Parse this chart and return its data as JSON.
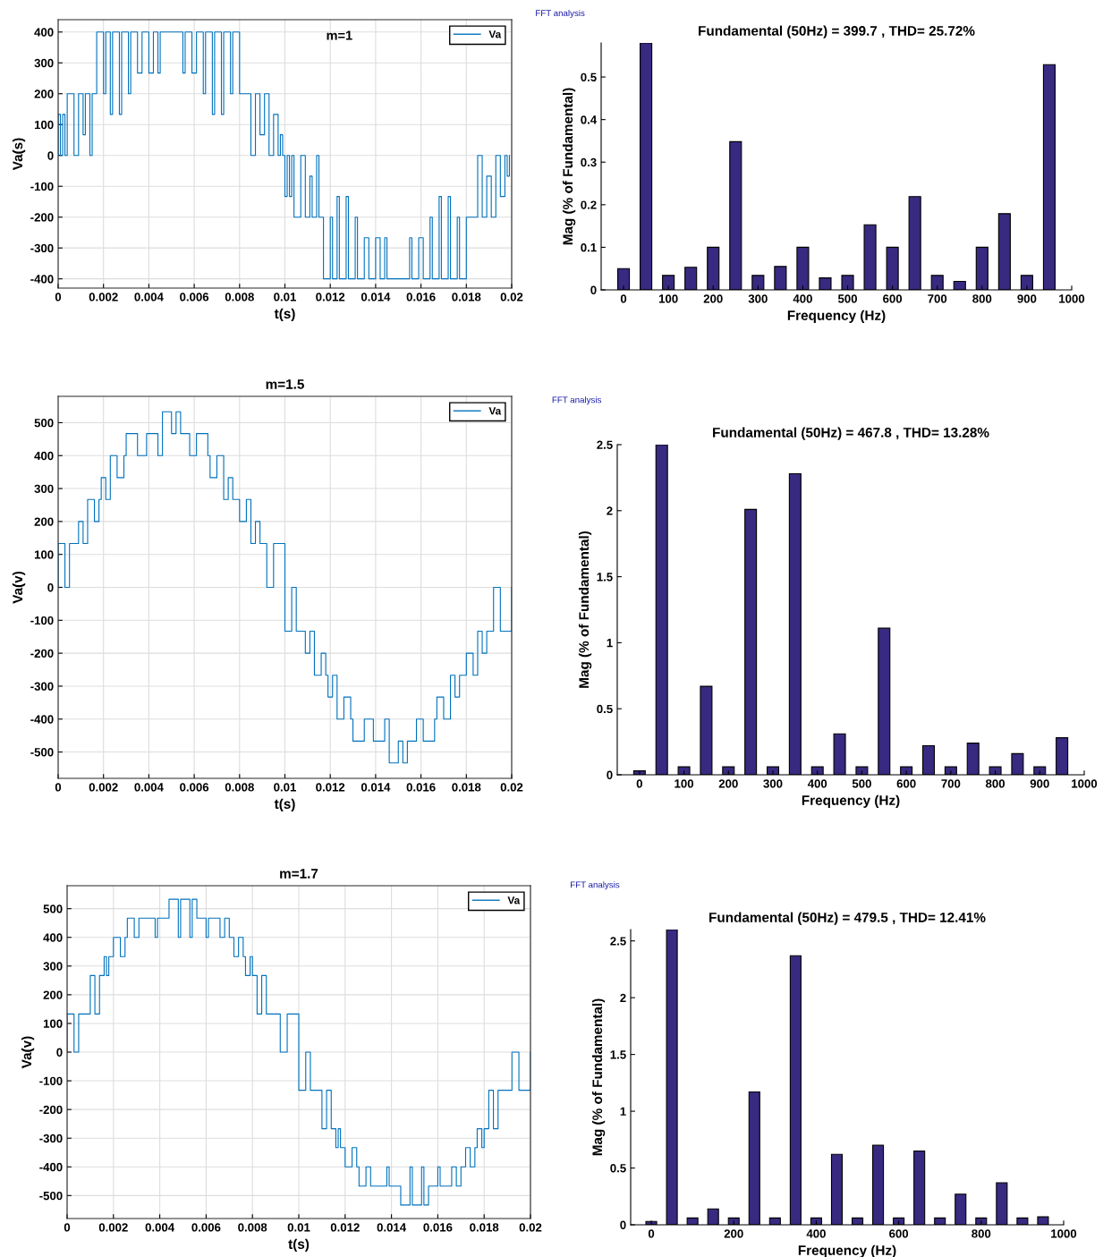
{
  "chart_data": [
    {
      "type": "line",
      "title": "m=1",
      "xlabel": "t(s)",
      "ylabel": "Va(s)",
      "xlim": [
        0,
        0.02
      ],
      "ylim": [
        -430,
        440
      ],
      "xticks": [
        0,
        0.002,
        0.004,
        0.006,
        0.008,
        0.01,
        0.012,
        0.014,
        0.016,
        0.018,
        0.02
      ],
      "yticks": [
        -400,
        -300,
        -200,
        -100,
        0,
        100,
        200,
        300,
        400
      ],
      "grid": true,
      "legend": "top right",
      "series": [
        {
          "name": "Va",
          "color": "#0072bd",
          "x": [
            0,
            0,
            0.0001,
            0.0001,
            0.0002,
            0.0002,
            0.0003,
            0.0003,
            0.0004,
            0.0004,
            0.0007,
            0.0007,
            0.0009,
            0.0009,
            0.0011,
            0.0011,
            0.0012,
            0.0012,
            0.0014,
            0.0014,
            0.0015,
            0.0015,
            0.0017,
            0.0017,
            0.002,
            0.002,
            0.0021,
            0.0021,
            0.0023,
            0.0023,
            0.0024,
            0.0024,
            0.0027,
            0.0027,
            0.0028,
            0.0028,
            0.0031,
            0.0031,
            0.0032,
            0.0032,
            0.0035,
            0.0035,
            0.0037,
            0.0037,
            0.004,
            0.004,
            0.0042,
            0.0042,
            0.0044,
            0.0044,
            0.0045,
            0.0045,
            0.0055,
            0.0055,
            0.0056,
            0.0056,
            0.0059,
            0.0059,
            0.0061,
            0.0061,
            0.0064,
            0.0064,
            0.0065,
            0.0065,
            0.0068,
            0.0068,
            0.0069,
            0.0069,
            0.0072,
            0.0072,
            0.0073,
            0.0073,
            0.0076,
            0.0076,
            0.0077,
            0.0077,
            0.008,
            0.008,
            0.0085,
            0.0085,
            0.0087,
            0.0087,
            0.0089,
            0.0089,
            0.0091,
            0.0091,
            0.0093,
            0.0093,
            0.0095,
            0.0095,
            0.0097,
            0.0097,
            0.0098,
            0.0098,
            0.0099,
            0.0099,
            0.01,
            0.01,
            0.0101,
            0.0101,
            0.0102,
            0.0102,
            0.0103,
            0.0103,
            0.0104,
            0.0104,
            0.0107,
            0.0107,
            0.0109,
            0.0109,
            0.0111,
            0.0111,
            0.0112,
            0.0112,
            0.0114,
            0.0114,
            0.0115,
            0.0115,
            0.0117,
            0.0117,
            0.012,
            0.012,
            0.0121,
            0.0121,
            0.0123,
            0.0123,
            0.0124,
            0.0124,
            0.0127,
            0.0127,
            0.0128,
            0.0128,
            0.0131,
            0.0131,
            0.0132,
            0.0132,
            0.0135,
            0.0135,
            0.0137,
            0.0137,
            0.014,
            0.014,
            0.0142,
            0.0142,
            0.0144,
            0.0144,
            0.0145,
            0.0145,
            0.0155,
            0.0155,
            0.0156,
            0.0156,
            0.0159,
            0.0159,
            0.0161,
            0.0161,
            0.0164,
            0.0164,
            0.0165,
            0.0165,
            0.0168,
            0.0168,
            0.0169,
            0.0169,
            0.0172,
            0.0172,
            0.0173,
            0.0173,
            0.0176,
            0.0176,
            0.0177,
            0.0177,
            0.018,
            0.018,
            0.0185,
            0.0185,
            0.0187,
            0.0187,
            0.0189,
            0.0189,
            0.0191,
            0.0191,
            0.0193,
            0.0193,
            0.0195,
            0.0195,
            0.0197,
            0.0197,
            0.0198,
            0.0198,
            0.0199,
            0.0199
          ],
          "values": [
            0,
            133,
            133,
            0,
            0,
            133,
            133,
            0,
            0,
            200,
            200,
            0,
            0,
            200,
            200,
            67,
            67,
            200,
            200,
            0,
            0,
            200,
            200,
            400,
            400,
            200,
            200,
            400,
            400,
            133,
            133,
            400,
            400,
            133,
            133,
            400,
            400,
            200,
            200,
            400,
            400,
            267,
            267,
            400,
            400,
            267,
            267,
            400,
            400,
            267,
            267,
            400,
            400,
            267,
            267,
            400,
            400,
            267,
            267,
            400,
            400,
            200,
            200,
            400,
            400,
            133,
            133,
            400,
            400,
            133,
            133,
            400,
            400,
            200,
            200,
            400,
            400,
            200,
            200,
            0,
            0,
            200,
            200,
            67,
            67,
            200,
            200,
            0,
            0,
            133,
            133,
            0,
            0,
            67,
            67,
            0,
            0,
            -133,
            -133,
            0,
            0,
            -133,
            -133,
            0,
            0,
            -200,
            -200,
            0,
            0,
            -200,
            -200,
            -67,
            -67,
            -200,
            -200,
            0,
            0,
            -200,
            -200,
            -400,
            -400,
            -200,
            -200,
            -400,
            -400,
            -133,
            -133,
            -400,
            -400,
            -133,
            -133,
            -400,
            -400,
            -200,
            -200,
            -400,
            -400,
            -267,
            -267,
            -400,
            -400,
            -267,
            -267,
            -400,
            -400,
            -267,
            -267,
            -400,
            -400,
            -267,
            -267,
            -400,
            -400,
            -267,
            -267,
            -400,
            -400,
            -200,
            -200,
            -400,
            -400,
            -133,
            -133,
            -400,
            -400,
            -133,
            -133,
            -400,
            -400,
            -200,
            -200,
            -400,
            -400,
            -200,
            -200,
            0,
            0,
            -200,
            -200,
            -67,
            -67,
            -200,
            -200,
            0,
            0,
            -133,
            -133,
            0,
            0,
            -67,
            -67,
            0
          ]
        }
      ]
    },
    {
      "type": "bar",
      "title": "Fundamental (50Hz) = 399.7 , THD= 25.72%",
      "xlabel": "Frequency (Hz)",
      "ylabel": "Mag (% of Fundamental)",
      "annotations": [
        "FFT analysis"
      ],
      "xlim": [
        -50,
        1000
      ],
      "ylim": [
        0,
        0.58
      ],
      "xticks": [
        0,
        100,
        200,
        300,
        400,
        500,
        600,
        700,
        800,
        900,
        1000
      ],
      "yticks": [
        0,
        0.1,
        0.2,
        0.3,
        0.4,
        0.5
      ],
      "grid": false,
      "x": [
        0,
        50,
        100,
        150,
        200,
        250,
        300,
        350,
        400,
        450,
        500,
        550,
        600,
        650,
        700,
        750,
        800,
        850,
        900,
        950
      ],
      "values": [
        0.05,
        0.58,
        0.034,
        0.053,
        0.1,
        0.348,
        0.034,
        0.055,
        0.1,
        0.028,
        0.034,
        0.153,
        0.1,
        0.219,
        0.034,
        0.02,
        0.1,
        0.179,
        0.034,
        0.529
      ],
      "color": "#372a80"
    },
    {
      "type": "line",
      "title": "m=1.5",
      "xlabel": "t(s)",
      "ylabel": "Va(v)",
      "xlim": [
        0,
        0.02
      ],
      "ylim": [
        -580,
        580
      ],
      "xticks": [
        0,
        0.002,
        0.004,
        0.006,
        0.008,
        0.01,
        0.012,
        0.014,
        0.016,
        0.018,
        0.02
      ],
      "yticks": [
        -500,
        -400,
        -300,
        -200,
        -100,
        0,
        100,
        200,
        300,
        400,
        500
      ],
      "grid": true,
      "legend": "top right",
      "series": [
        {
          "name": "Va",
          "color": "#0072bd",
          "x": [
            0,
            0,
            0.0003,
            0.0003,
            0.0005,
            0.0005,
            0.0009,
            0.0009,
            0.0011,
            0.0011,
            0.0013,
            0.0013,
            0.0016,
            0.0016,
            0.0018,
            0.0018,
            0.0019,
            0.0019,
            0.0021,
            0.0021,
            0.0023,
            0.0023,
            0.0026,
            0.0026,
            0.0029,
            0.0029,
            0.003,
            0.003,
            0.0035,
            0.0035,
            0.0039,
            0.0039,
            0.0044,
            0.0044,
            0.0046,
            0.0046,
            0.005,
            0.005,
            0.0052,
            0.0052,
            0.0054,
            0.0054,
            0.0058,
            0.0058,
            0.0061,
            0.0061,
            0.0066,
            0.0066,
            0.0067,
            0.0067,
            0.007,
            0.007,
            0.0073,
            0.0073,
            0.0075,
            0.0075,
            0.0077,
            0.0077,
            0.008,
            0.008,
            0.0083,
            0.0083,
            0.0085,
            0.0085,
            0.0087,
            0.0087,
            0.0089,
            0.0089,
            0.0092,
            0.0092,
            0.0095,
            0.0095,
            0.01,
            0.01,
            0.01,
            0.01,
            0.0103,
            0.0103,
            0.0105,
            0.0105,
            0.0109,
            0.0109,
            0.0111,
            0.0111,
            0.0113,
            0.0113,
            0.0116,
            0.0116,
            0.0118,
            0.0118,
            0.0119,
            0.0119,
            0.0121,
            0.0121,
            0.0123,
            0.0123,
            0.0126,
            0.0126,
            0.0129,
            0.0129,
            0.013,
            0.013,
            0.0135,
            0.0135,
            0.0139,
            0.0139,
            0.0144,
            0.0144,
            0.0146,
            0.0146,
            0.015,
            0.015,
            0.0152,
            0.0152,
            0.0154,
            0.0154,
            0.0158,
            0.0158,
            0.0161,
            0.0161,
            0.0166,
            0.0166,
            0.0167,
            0.0167,
            0.017,
            0.017,
            0.0173,
            0.0173,
            0.0175,
            0.0175,
            0.0177,
            0.0177,
            0.018,
            0.018,
            0.0183,
            0.0183,
            0.0185,
            0.0185,
            0.0187,
            0.0187,
            0.0189,
            0.0189,
            0.0192,
            0.0192,
            0.0195,
            0.0195,
            0.02,
            0.02
          ],
          "values": [
            0,
            133,
            133,
            0,
            0,
            133,
            133,
            200,
            200,
            133,
            133,
            267,
            267,
            200,
            200,
            267,
            267,
            333,
            333,
            267,
            267,
            400,
            400,
            333,
            333,
            400,
            400,
            467,
            467,
            400,
            400,
            467,
            467,
            400,
            400,
            533,
            533,
            467,
            467,
            533,
            533,
            467,
            467,
            400,
            400,
            467,
            467,
            400,
            400,
            333,
            333,
            400,
            400,
            267,
            267,
            333,
            333,
            267,
            267,
            200,
            200,
            267,
            267,
            133,
            133,
            200,
            200,
            133,
            133,
            0,
            0,
            133,
            133,
            0,
            0,
            -133,
            -133,
            0,
            0,
            -133,
            -133,
            -200,
            -200,
            -133,
            -133,
            -267,
            -267,
            -200,
            -200,
            -267,
            -267,
            -333,
            -333,
            -267,
            -267,
            -400,
            -400,
            -333,
            -333,
            -400,
            -400,
            -467,
            -467,
            -400,
            -400,
            -467,
            -467,
            -400,
            -400,
            -533,
            -533,
            -467,
            -467,
            -533,
            -533,
            -467,
            -467,
            -400,
            -400,
            -467,
            -467,
            -400,
            -400,
            -333,
            -333,
            -400,
            -400,
            -267,
            -267,
            -333,
            -333,
            -267,
            -267,
            -200,
            -200,
            -267,
            -267,
            -133,
            -133,
            -200,
            -200,
            -133,
            -133,
            0,
            0,
            -133,
            -133,
            0
          ]
        }
      ]
    },
    {
      "type": "bar",
      "title": "Fundamental (50Hz) = 467.8 , THD= 13.28%",
      "xlabel": "Frequency (Hz)",
      "ylabel": "Mag (% of Fundamental)",
      "annotations": [
        "FFT analysis"
      ],
      "xlim": [
        -50,
        1000
      ],
      "ylim": [
        0,
        2.5
      ],
      "xticks": [
        0,
        100,
        200,
        300,
        400,
        500,
        600,
        700,
        800,
        900,
        1000
      ],
      "yticks": [
        0,
        0.5,
        1,
        1.5,
        2,
        2.5
      ],
      "grid": false,
      "x": [
        0,
        50,
        100,
        150,
        200,
        250,
        300,
        350,
        400,
        450,
        500,
        550,
        600,
        650,
        700,
        750,
        800,
        850,
        900,
        950
      ],
      "values": [
        0.03,
        2.5,
        0.06,
        0.67,
        0.06,
        2.01,
        0.06,
        2.28,
        0.06,
        0.31,
        0.06,
        1.11,
        0.06,
        0.22,
        0.06,
        0.24,
        0.06,
        0.16,
        0.06,
        0.28
      ],
      "color": "#372a80"
    },
    {
      "type": "line",
      "title": "m=1.7",
      "xlabel": "t(s)",
      "ylabel": "Va(v)",
      "xlim": [
        0,
        0.02
      ],
      "ylim": [
        -580,
        580
      ],
      "xticks": [
        0,
        0.002,
        0.004,
        0.006,
        0.008,
        0.01,
        0.012,
        0.014,
        0.016,
        0.018,
        0.02
      ],
      "yticks": [
        -500,
        -400,
        -300,
        -200,
        -100,
        0,
        100,
        200,
        300,
        400,
        500
      ],
      "grid": true,
      "legend": "top right",
      "series": [
        {
          "name": "Va",
          "color": "#0072bd",
          "x": [
            0,
            0,
            0.0003,
            0.0003,
            0.0005,
            0.0005,
            0.001,
            0.001,
            0.0012,
            0.0012,
            0.0014,
            0.0014,
            0.0016,
            0.0016,
            0.0017,
            0.0017,
            0.0018,
            0.0018,
            0.002,
            0.002,
            0.0023,
            0.0023,
            0.0025,
            0.0025,
            0.0026,
            0.0026,
            0.0029,
            0.0029,
            0.0031,
            0.0031,
            0.0038,
            0.0038,
            0.0039,
            0.0039,
            0.0044,
            0.0044,
            0.0048,
            0.0048,
            0.0049,
            0.0049,
            0.0053,
            0.0053,
            0.0054,
            0.0054,
            0.0056,
            0.0056,
            0.006,
            0.006,
            0.0061,
            0.0061,
            0.0066,
            0.0066,
            0.0068,
            0.0068,
            0.007,
            0.007,
            0.0072,
            0.0072,
            0.0074,
            0.0074,
            0.0076,
            0.0076,
            0.0077,
            0.0077,
            0.0079,
            0.0079,
            0.008,
            0.008,
            0.0082,
            0.0082,
            0.0084,
            0.0084,
            0.0086,
            0.0086,
            0.0092,
            0.0092,
            0.0095,
            0.0095,
            0.01,
            0.01,
            0.01,
            0.01,
            0.0103,
            0.0103,
            0.0105,
            0.0105,
            0.011,
            0.011,
            0.0112,
            0.0112,
            0.0114,
            0.0114,
            0.0116,
            0.0116,
            0.0117,
            0.0117,
            0.0118,
            0.0118,
            0.012,
            0.012,
            0.0123,
            0.0123,
            0.0125,
            0.0125,
            0.0126,
            0.0126,
            0.0129,
            0.0129,
            0.0131,
            0.0131,
            0.0138,
            0.0138,
            0.0139,
            0.0139,
            0.0144,
            0.0144,
            0.0148,
            0.0148,
            0.0149,
            0.0149,
            0.0153,
            0.0153,
            0.0154,
            0.0154,
            0.0156,
            0.0156,
            0.016,
            0.016,
            0.0161,
            0.0161,
            0.0166,
            0.0166,
            0.0168,
            0.0168,
            0.017,
            0.017,
            0.0172,
            0.0172,
            0.0174,
            0.0174,
            0.0176,
            0.0176,
            0.0177,
            0.0177,
            0.0179,
            0.0179,
            0.018,
            0.018,
            0.0182,
            0.0182,
            0.0184,
            0.0184,
            0.0186,
            0.0186,
            0.0192,
            0.0192,
            0.0195,
            0.0195,
            0.02,
            0.02
          ],
          "values": [
            0,
            133,
            133,
            0,
            0,
            133,
            133,
            267,
            267,
            133,
            133,
            267,
            267,
            333,
            333,
            267,
            267,
            333,
            333,
            400,
            400,
            333,
            333,
            400,
            400,
            467,
            467,
            400,
            400,
            467,
            467,
            400,
            400,
            467,
            467,
            533,
            533,
            400,
            400,
            533,
            533,
            400,
            400,
            533,
            533,
            467,
            467,
            400,
            400,
            467,
            467,
            400,
            400,
            467,
            467,
            400,
            400,
            333,
            333,
            400,
            400,
            333,
            333,
            267,
            267,
            333,
            333,
            267,
            267,
            133,
            133,
            267,
            267,
            133,
            133,
            0,
            0,
            133,
            133,
            0,
            0,
            -133,
            -133,
            0,
            0,
            -133,
            -133,
            -267,
            -267,
            -133,
            -133,
            -267,
            -267,
            -333,
            -333,
            -267,
            -267,
            -333,
            -333,
            -400,
            -400,
            -333,
            -333,
            -400,
            -400,
            -467,
            -467,
            -400,
            -400,
            -467,
            -467,
            -400,
            -400,
            -467,
            -467,
            -533,
            -533,
            -400,
            -400,
            -533,
            -533,
            -400,
            -400,
            -533,
            -533,
            -467,
            -467,
            -400,
            -400,
            -467,
            -467,
            -400,
            -400,
            -467,
            -467,
            -400,
            -400,
            -333,
            -333,
            -400,
            -400,
            -333,
            -333,
            -267,
            -267,
            -333,
            -333,
            -267,
            -267,
            -133,
            -133,
            -267,
            -267,
            -133,
            -133,
            0,
            0,
            -133,
            -133,
            0
          ]
        }
      ]
    },
    {
      "type": "bar",
      "title": "Fundamental (50Hz) = 479.5 , THD= 12.41%",
      "xlabel": "Frequency (Hz)",
      "ylabel": "Mag (% of Fundamental)",
      "annotations": [
        "FFT analysis"
      ],
      "xlim": [
        -50,
        1000
      ],
      "ylim": [
        0,
        2.6
      ],
      "xticks": [
        0,
        200,
        400,
        600,
        800,
        1000
      ],
      "yticks": [
        0,
        0.5,
        1,
        1.5,
        2,
        2.5
      ],
      "grid": false,
      "x": [
        0,
        50,
        100,
        150,
        200,
        250,
        300,
        350,
        400,
        450,
        500,
        550,
        600,
        650,
        700,
        750,
        800,
        850,
        900,
        950
      ],
      "values": [
        0.03,
        2.6,
        0.06,
        0.14,
        0.06,
        1.17,
        0.06,
        2.37,
        0.06,
        0.62,
        0.06,
        0.7,
        0.06,
        0.65,
        0.06,
        0.27,
        0.06,
        0.37,
        0.06,
        0.07
      ],
      "color": "#372a80"
    }
  ]
}
